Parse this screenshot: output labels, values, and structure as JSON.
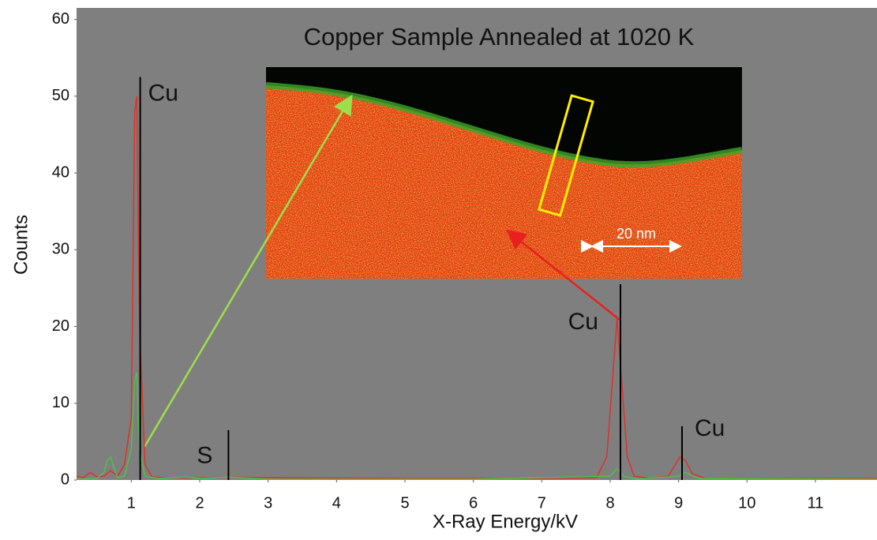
{
  "chart_data": {
    "type": "spectrum",
    "title": "Copper Sample Annealed at 1020 K",
    "x_label": "X-Ray Energy/kV",
    "y_label": "Counts",
    "xlim": [
      0.2,
      11.9
    ],
    "xticks": [
      1,
      2,
      3,
      4,
      5,
      6,
      7,
      8,
      9,
      10,
      11
    ],
    "ylim": [
      0,
      61.5
    ],
    "yticks": [
      0,
      10,
      20,
      30,
      40,
      50,
      60
    ],
    "series": [
      {
        "color": "#e0302a",
        "x": [
          0.2,
          0.3,
          0.4,
          0.5,
          0.6,
          0.7,
          0.8,
          0.9,
          0.95,
          1.0,
          1.05,
          1.08,
          1.12,
          1.2,
          1.3,
          1.5,
          2.0,
          2.4,
          3,
          5,
          7,
          7.8,
          7.95,
          8.05,
          8.1,
          8.15,
          8.25,
          8.35,
          8.6,
          8.85,
          8.95,
          9.02,
          9.1,
          9.2,
          9.4,
          10,
          11,
          11.9
        ],
        "values": [
          0.5,
          0.3,
          1,
          0.4,
          0.5,
          1.2,
          0.5,
          2,
          5,
          8,
          48,
          50,
          20,
          2,
          0.4,
          0.3,
          0.3,
          0.4,
          0.3,
          0.2,
          0.2,
          0.3,
          3,
          15,
          21,
          15,
          3,
          0.5,
          0.2,
          0.5,
          2,
          3,
          2.5,
          0.8,
          0.2,
          0.2,
          0.2,
          0.2
        ]
      },
      {
        "color": "#4fc04a",
        "x": [
          0.2,
          0.5,
          0.6,
          0.65,
          0.7,
          0.75,
          0.8,
          0.9,
          1.0,
          1.05,
          1.08,
          1.12,
          1.2,
          1.4,
          1.8,
          1.9,
          2.0,
          2.4,
          3,
          6,
          8.0,
          8.1,
          8.2,
          8.4,
          9.0,
          9.1,
          9.3,
          11.9
        ],
        "values": [
          0.1,
          0.2,
          1,
          2.5,
          3,
          1.5,
          0.3,
          0.5,
          4,
          13,
          14,
          4,
          0.5,
          0.2,
          0.4,
          0.3,
          0.2,
          0.4,
          0.1,
          0.1,
          0.5,
          1.5,
          0.5,
          0.1,
          0.5,
          1,
          0.2,
          0.1
        ]
      }
    ],
    "peaks": [
      {
        "label": "Cu",
        "x": 1.13,
        "value": 52.5
      },
      {
        "label": "S",
        "x": 2.42,
        "value": 6.5
      },
      {
        "label": "Cu",
        "x": 8.15,
        "value": 25.5
      },
      {
        "label": "Cu",
        "x": 9.05,
        "value": 7
      }
    ],
    "peak_color": "#000000",
    "inset_scale_label": "20 nm"
  }
}
